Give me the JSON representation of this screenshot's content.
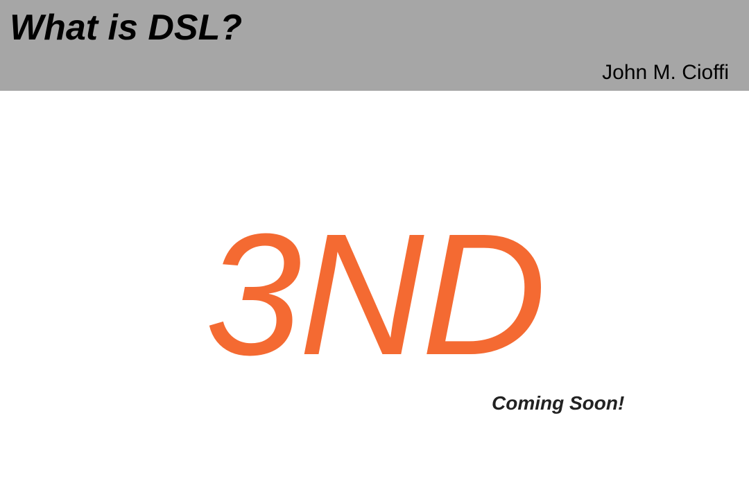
{
  "header": {
    "title": "What is DSL?",
    "author": "John M. Cioffi"
  },
  "main": {
    "headline": "3ND",
    "tagline": "Coming Soon!"
  },
  "colors": {
    "header_background": "#a6a6a6",
    "headline": "#f46a32",
    "tagline": "#222222",
    "title": "#000000",
    "background": "#ffffff"
  }
}
